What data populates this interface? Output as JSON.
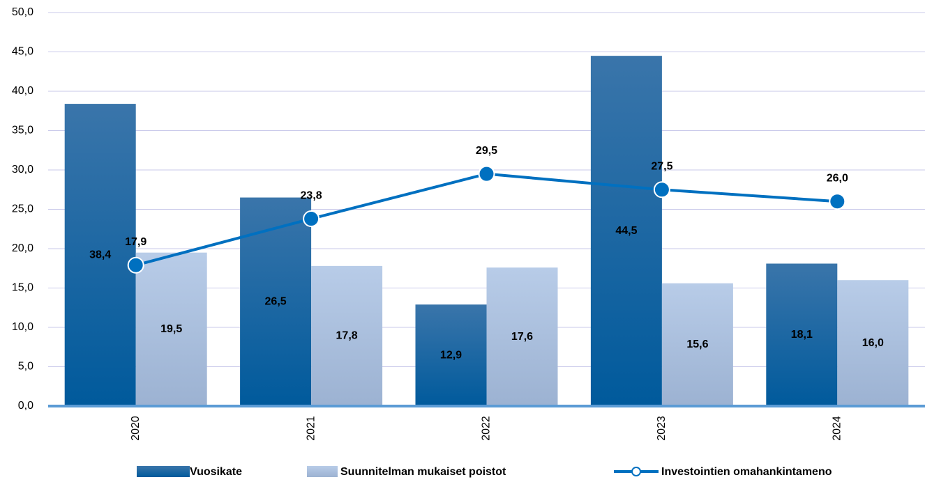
{
  "chart_data": {
    "type": "bar",
    "categories": [
      "2020",
      "2021",
      "2022",
      "2023",
      "2024"
    ],
    "series": [
      {
        "name": "Vuosikate",
        "color": "#005a9c",
        "values": [
          38.4,
          26.5,
          12.9,
          44.5,
          18.1
        ],
        "value_labels": [
          "38,4",
          "26,5",
          "12,9",
          "44,5",
          "18,1"
        ]
      },
      {
        "name": "Suunnitelman mukaiset poistot",
        "color": "#b4c8e6",
        "values": [
          19.5,
          17.8,
          17.6,
          15.6,
          16.0
        ],
        "value_labels": [
          "19,5",
          "17,8",
          "17,6",
          "15,6",
          "16,0"
        ]
      },
      {
        "name": "Investointien omahankintameno",
        "type": "line",
        "color": "#0070c0",
        "values": [
          17.9,
          23.8,
          29.5,
          27.5,
          26.0
        ],
        "value_labels": [
          "17,9",
          "23,8",
          "29,5",
          "27,5",
          "26,0"
        ]
      }
    ],
    "ylim": [
      0,
      50
    ],
    "yticks": [
      {
        "value": 0,
        "label": "0,0"
      },
      {
        "value": 5,
        "label": "5,0"
      },
      {
        "value": 10,
        "label": "10,0"
      },
      {
        "value": 15,
        "label": "15,0"
      },
      {
        "value": 20,
        "label": "20,0"
      },
      {
        "value": 25,
        "label": "25,0"
      },
      {
        "value": 30,
        "label": "30,0"
      },
      {
        "value": 35,
        "label": "35,0"
      },
      {
        "value": 40,
        "label": "40,0"
      },
      {
        "value": 45,
        "label": "45,0"
      },
      {
        "value": 50,
        "label": "50,0"
      }
    ],
    "grid": true
  }
}
